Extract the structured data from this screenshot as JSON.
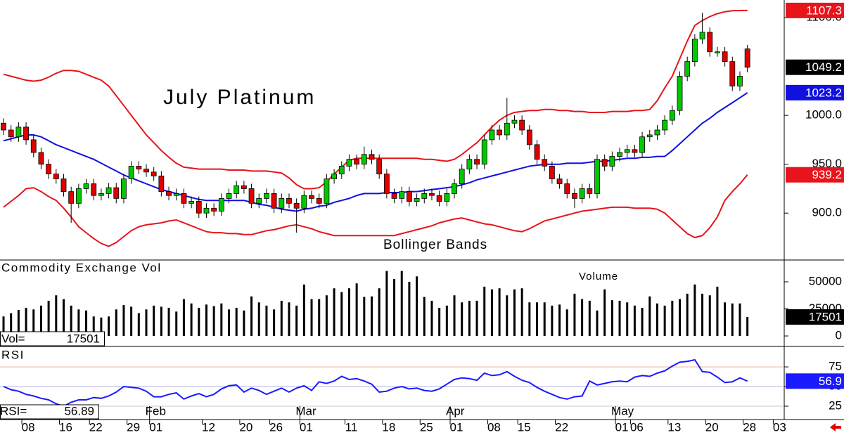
{
  "chart_data": [
    {
      "type": "candlestick",
      "title": "July Platinum",
      "annotation": "Bollinger Bands",
      "up_color": "#00c800",
      "down_color": "#e00000",
      "close_color": "#000000",
      "open": [
        992,
        985,
        978,
        988,
        975,
        962,
        950,
        940,
        935,
        922,
        910,
        925,
        930,
        918,
        920,
        926,
        915,
        935,
        948,
        945,
        942,
        938,
        922,
        918,
        920,
        910,
        912,
        900,
        905,
        902,
        915,
        920,
        928,
        925,
        910,
        915,
        920,
        905,
        915,
        910,
        905,
        918,
        915,
        910,
        935,
        940,
        948,
        955,
        950,
        960,
        955,
        940,
        920,
        915,
        922,
        912,
        915,
        920,
        918,
        912,
        920,
        930,
        945,
        955,
        950,
        975,
        985,
        980,
        992,
        995,
        985,
        970,
        955,
        948,
        935,
        930,
        920,
        915,
        925,
        920,
        955,
        948,
        958,
        962,
        965,
        962,
        978,
        980,
        985,
        995,
        1005,
        1040,
        1055,
        1078,
        1085,
        1065,
        1065,
        1055,
        1030,
        1068
      ],
      "high": [
        997,
        990,
        993,
        993,
        980,
        967,
        955,
        945,
        940,
        927,
        930,
        935,
        935,
        925,
        931,
        931,
        940,
        953,
        953,
        950,
        947,
        943,
        927,
        925,
        925,
        917,
        917,
        910,
        910,
        920,
        925,
        933,
        933,
        930,
        920,
        925,
        925,
        920,
        920,
        915,
        923,
        923,
        920,
        940,
        945,
        953,
        960,
        960,
        968,
        965,
        960,
        945,
        925,
        927,
        927,
        920,
        925,
        925,
        923,
        925,
        935,
        950,
        960,
        960,
        980,
        990,
        990,
        1018,
        1000,
        1000,
        990,
        975,
        960,
        953,
        940,
        935,
        925,
        930,
        930,
        960,
        960,
        963,
        967,
        970,
        970,
        983,
        985,
        990,
        1000,
        1010,
        1045,
        1060,
        1083,
        1105,
        1090,
        1070,
        1070,
        1060,
        1045,
        1072
      ],
      "low": [
        980,
        973,
        973,
        970,
        957,
        945,
        935,
        930,
        917,
        890,
        905,
        920,
        913,
        913,
        915,
        910,
        910,
        930,
        940,
        937,
        933,
        917,
        913,
        913,
        905,
        905,
        895,
        895,
        897,
        897,
        910,
        915,
        920,
        905,
        905,
        910,
        900,
        900,
        905,
        880,
        900,
        910,
        905,
        905,
        930,
        935,
        943,
        945,
        945,
        950,
        935,
        915,
        910,
        910,
        907,
        907,
        910,
        913,
        907,
        907,
        915,
        925,
        940,
        945,
        945,
        970,
        975,
        975,
        987,
        980,
        965,
        950,
        943,
        930,
        925,
        915,
        905,
        910,
        915,
        915,
        943,
        943,
        953,
        957,
        957,
        957,
        973,
        975,
        980,
        990,
        1000,
        1035,
        1050,
        1073,
        1060,
        1060,
        1050,
        1025,
        1025,
        1044
      ],
      "close": [
        985,
        978,
        988,
        975,
        962,
        950,
        940,
        935,
        922,
        910,
        925,
        930,
        918,
        920,
        926,
        915,
        935,
        948,
        945,
        942,
        938,
        922,
        918,
        920,
        910,
        912,
        900,
        905,
        902,
        915,
        920,
        928,
        925,
        910,
        915,
        920,
        905,
        915,
        910,
        905,
        918,
        915,
        910,
        935,
        940,
        948,
        955,
        950,
        960,
        955,
        940,
        920,
        915,
        922,
        912,
        915,
        920,
        918,
        912,
        920,
        930,
        945,
        955,
        950,
        975,
        985,
        980,
        992,
        995,
        985,
        970,
        955,
        948,
        935,
        930,
        920,
        915,
        925,
        920,
        955,
        948,
        958,
        962,
        965,
        962,
        978,
        980,
        985,
        995,
        1005,
        1040,
        1055,
        1078,
        1085,
        1065,
        1065,
        1055,
        1030,
        1040,
        1049.2
      ],
      "bands": {
        "upper": {
          "color": "#e8141b",
          "values": [
            1042,
            1040,
            1038,
            1036,
            1035,
            1036,
            1039,
            1043,
            1046,
            1046,
            1045,
            1042,
            1039,
            1036,
            1030,
            1020,
            1010,
            1000,
            990,
            980,
            972,
            964,
            957,
            951,
            947,
            946,
            945,
            945,
            945,
            945,
            944,
            944,
            944,
            943,
            943,
            943,
            942,
            941,
            936,
            929,
            925,
            925,
            926,
            932,
            940,
            947,
            954,
            956,
            956,
            956,
            956,
            956,
            956,
            956,
            956,
            956,
            955,
            955,
            954,
            953,
            955,
            960,
            966,
            972,
            980,
            988,
            995,
            1000,
            1003,
            1004,
            1005,
            1005,
            1006,
            1006,
            1005,
            1005,
            1004,
            1004,
            1003,
            1003,
            1003,
            1004,
            1004,
            1004,
            1005,
            1005,
            1006,
            1015,
            1028,
            1040,
            1058,
            1076,
            1092,
            1097,
            1101,
            1104,
            1106,
            1107,
            1107.2,
            1107.3
          ]
        },
        "middle": {
          "color": "#1010e0",
          "values": [
            974,
            976,
            978,
            980,
            980,
            978,
            974,
            970,
            967,
            964,
            961,
            958,
            955,
            951,
            947,
            943,
            939,
            936,
            933,
            930,
            927,
            924,
            922,
            920,
            918,
            916,
            914,
            913,
            913,
            913,
            913,
            913,
            913,
            911,
            909,
            908,
            906,
            904,
            903,
            902,
            904,
            905,
            907,
            908,
            911,
            913,
            915,
            918,
            920,
            920,
            920,
            921,
            921,
            921,
            922,
            922,
            923,
            924,
            925,
            926,
            927,
            929,
            931,
            934,
            936,
            938,
            940,
            942,
            944,
            946,
            948,
            949,
            950,
            950,
            950,
            951,
            951,
            951,
            952,
            953,
            953,
            954,
            955,
            956,
            956,
            957,
            957,
            958,
            958,
            964,
            971,
            978,
            985,
            992,
            997,
            1003,
            1008,
            1013,
            1018,
            1023.2
          ]
        },
        "lower": {
          "color": "#e8141b",
          "values": [
            906,
            912,
            918,
            925,
            926,
            922,
            917,
            913,
            905,
            896,
            886,
            880,
            874,
            869,
            866,
            870,
            876,
            882,
            886,
            888,
            889,
            890,
            892,
            893,
            890,
            887,
            884,
            881,
            880,
            880,
            879,
            879,
            878,
            878,
            880,
            882,
            883,
            885,
            887,
            888,
            886,
            884,
            881,
            879,
            877,
            877,
            877,
            877,
            877,
            877,
            877,
            877,
            877,
            879,
            881,
            883,
            885,
            887,
            890,
            892,
            894,
            895,
            893,
            891,
            889,
            888,
            886,
            884,
            882,
            881,
            884,
            888,
            892,
            894,
            896,
            898,
            900,
            902,
            903,
            904,
            905,
            906,
            906,
            906,
            905,
            905,
            905,
            904,
            900,
            893,
            886,
            879,
            875,
            877,
            885,
            896,
            913,
            922,
            930,
            939.2
          ]
        }
      },
      "ylim": [
        852,
        1118
      ],
      "yticks": [
        {
          "value": 900,
          "label": "900.0"
        },
        {
          "value": 950,
          "label": "950.0"
        },
        {
          "value": 1000,
          "label": "1000.0"
        },
        {
          "value": 1100,
          "label": "1100.0"
        }
      ]
    },
    {
      "type": "bar",
      "title": "Commodity Exchange Vol",
      "annotation": "Volume",
      "readout_label": "Vol=",
      "color": "#000000",
      "values": [
        18000,
        21000,
        24000,
        26000,
        24500,
        28000,
        32500,
        37500,
        34000,
        28000,
        24500,
        23500,
        18000,
        17000,
        18000,
        24500,
        28500,
        27000,
        21000,
        24500,
        28000,
        27000,
        26000,
        22500,
        34000,
        30000,
        26000,
        29000,
        27500,
        30000,
        24500,
        26000,
        23500,
        36500,
        31000,
        28000,
        24500,
        32500,
        31000,
        28000,
        47500,
        34000,
        34000,
        37500,
        44000,
        40500,
        44000,
        48500,
        36000,
        36500,
        44000,
        60000,
        52500,
        60000,
        50000,
        55000,
        36000,
        32500,
        26000,
        28000,
        37500,
        31000,
        32500,
        32500,
        45500,
        43000,
        44000,
        37500,
        43000,
        44000,
        31000,
        31000,
        31000,
        28000,
        29000,
        24500,
        39000,
        34000,
        32500,
        23500,
        43000,
        33000,
        32500,
        31000,
        28000,
        26000,
        36500,
        30000,
        28000,
        32500,
        34000,
        39000,
        47500,
        39000,
        37500,
        45500,
        31000,
        30000,
        30000,
        17501
      ],
      "ylim": [
        -9700,
        70100
      ],
      "yticks": [
        0,
        25000,
        50000
      ]
    },
    {
      "type": "line",
      "title": "RSI",
      "readout_label": "RSI=",
      "color": "#1a1aff",
      "last_value_label": "56.9",
      "values": [
        50,
        46,
        44,
        40,
        38,
        35,
        33,
        28,
        25,
        30,
        33,
        33,
        36,
        35,
        38,
        43,
        50,
        49,
        48,
        44,
        37,
        37,
        40,
        42,
        34,
        38,
        41,
        37,
        40,
        47,
        51,
        52,
        43,
        48,
        45,
        40,
        44,
        48,
        43,
        48,
        51,
        45,
        56,
        54,
        57,
        63,
        59,
        60,
        57,
        53,
        43,
        44,
        48,
        50,
        47,
        48,
        45,
        44,
        47,
        53,
        59,
        61,
        60,
        58,
        67,
        64,
        65,
        69,
        63,
        58,
        55,
        49,
        44,
        40,
        36,
        34,
        37,
        38,
        57,
        52,
        54,
        56,
        57,
        56,
        62,
        64,
        63,
        67,
        70,
        76,
        81,
        82,
        84,
        69,
        68,
        62,
        55,
        56,
        61,
        56.89
      ],
      "ylim": [
        8,
        101
      ],
      "yticks": [
        25,
        50,
        75
      ],
      "reference_colors": [
        "#c8c8c8",
        "#b4b4e6",
        "#f0b090"
      ]
    }
  ],
  "x_axis": {
    "xlim": [
      -0.47,
      103.9
    ],
    "xticks": [
      {
        "value": 3,
        "label": "08"
      },
      {
        "value": 8,
        "label": "16"
      },
      {
        "value": 12,
        "label": "22"
      },
      {
        "value": 17,
        "label": "29"
      },
      {
        "value": 20,
        "label": "01"
      },
      {
        "value": 27,
        "label": "12"
      },
      {
        "value": 32,
        "label": "20"
      },
      {
        "value": 36,
        "label": "26"
      },
      {
        "value": 40,
        "label": "01"
      },
      {
        "value": 46,
        "label": "11"
      },
      {
        "value": 51,
        "label": "18"
      },
      {
        "value": 56,
        "label": "25"
      },
      {
        "value": 60,
        "label": "01"
      },
      {
        "value": 65,
        "label": "08"
      },
      {
        "value": 69,
        "label": "15"
      },
      {
        "value": 74,
        "label": "22"
      },
      {
        "value": 82,
        "label": "01"
      },
      {
        "value": 84,
        "label": "06"
      },
      {
        "value": 89,
        "label": "13"
      },
      {
        "value": 94,
        "label": "20"
      },
      {
        "value": 99,
        "label": "28"
      },
      {
        "value": 103,
        "label": "03"
      }
    ],
    "months": [
      {
        "value": 20,
        "label": "Feb"
      },
      {
        "value": 40,
        "label": "Mar"
      },
      {
        "value": 60,
        "label": "Apr"
      },
      {
        "value": 82,
        "label": "May"
      }
    ]
  }
}
